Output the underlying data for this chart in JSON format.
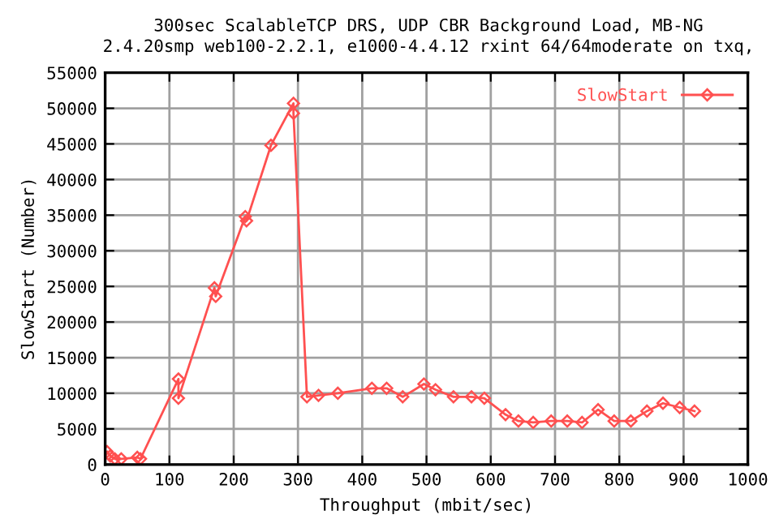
{
  "chart_data": {
    "type": "line",
    "title": "300sec ScalableTCP DRS, UDP CBR Background Load, MB-NG",
    "subtitle": "2.4.20smp web100-2.2.1, e1000-4.4.12 rxint 64/64moderate on txq,",
    "xlabel": "Throughput (mbit/sec)",
    "ylabel": "SlowStart (Number)",
    "series": [
      {
        "name": "SlowStart",
        "color": "#ff5050",
        "x": [
          3,
          8,
          15,
          25,
          50,
          55,
          114,
          114,
          170,
          172,
          218,
          220,
          258,
          293,
          293,
          314,
          332,
          362,
          415,
          438,
          463,
          496,
          514,
          542,
          570,
          590,
          623,
          643,
          666,
          694,
          719,
          742,
          767,
          792,
          818,
          843,
          868,
          894,
          917
        ],
        "values": [
          1800,
          1200,
          800,
          800,
          1000,
          800,
          12000,
          9300,
          24800,
          23600,
          34800,
          34200,
          44800,
          50700,
          49300,
          9500,
          9700,
          10000,
          10700,
          10700,
          9500,
          11300,
          10500,
          9500,
          9500,
          9300,
          7000,
          6100,
          5900,
          6100,
          6100,
          5900,
          7700,
          6100,
          6100,
          7500,
          8600,
          8000,
          7500
        ]
      }
    ],
    "xlim": [
      0,
      1000
    ],
    "xticks": [
      0,
      100,
      200,
      300,
      400,
      500,
      600,
      700,
      800,
      900,
      1000
    ],
    "ylim": [
      0,
      55000
    ],
    "yticks": [
      0,
      5000,
      10000,
      15000,
      20000,
      25000,
      30000,
      35000,
      40000,
      45000,
      50000,
      55000
    ],
    "grid": true,
    "legend": "top right",
    "marker": "diamond",
    "line_style": "solid"
  }
}
